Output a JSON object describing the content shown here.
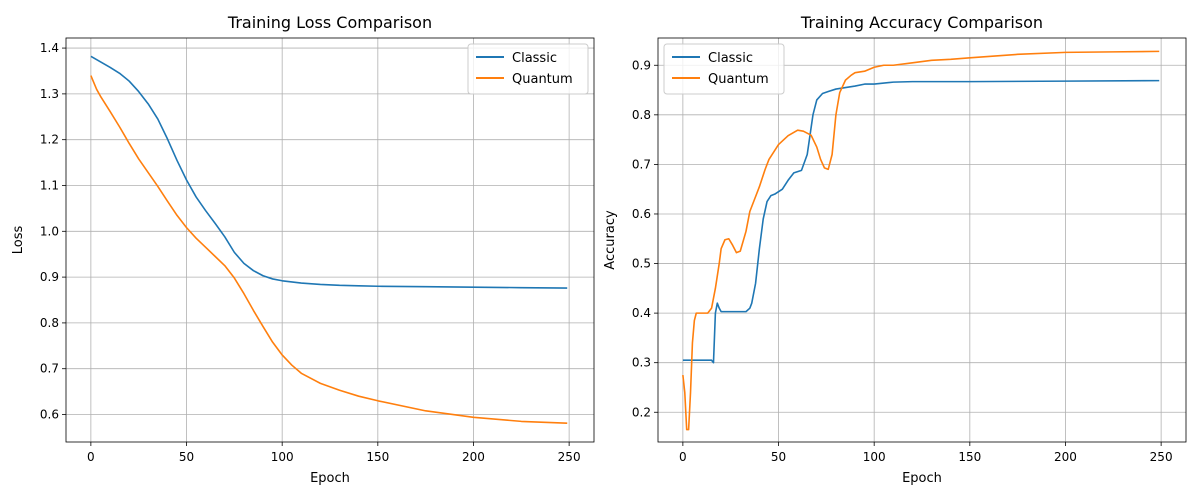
{
  "figure": {
    "background": "#ffffff"
  },
  "chart_data": [
    {
      "type": "line",
      "title": "Training Loss Comparison",
      "xlabel": "Epoch",
      "ylabel": "Loss",
      "xlim": [
        -13,
        263
      ],
      "ylim": [
        0.54,
        1.422
      ],
      "xticks": [
        0,
        50,
        100,
        150,
        200,
        250
      ],
      "yticks": [
        0.6,
        0.7,
        0.8,
        0.9,
        1.0,
        1.1,
        1.2,
        1.3,
        1.4
      ],
      "grid": true,
      "legend_position": "top-right",
      "series": [
        {
          "name": "Classic",
          "color": "#1f77b4",
          "x": [
            0,
            5,
            10,
            15,
            20,
            25,
            30,
            35,
            40,
            45,
            50,
            55,
            60,
            65,
            70,
            75,
            80,
            85,
            90,
            95,
            100,
            110,
            120,
            130,
            140,
            150,
            175,
            200,
            225,
            249
          ],
          "y": [
            1.382,
            1.37,
            1.358,
            1.345,
            1.328,
            1.305,
            1.278,
            1.245,
            1.202,
            1.155,
            1.112,
            1.075,
            1.045,
            1.017,
            0.988,
            0.954,
            0.93,
            0.914,
            0.903,
            0.896,
            0.892,
            0.887,
            0.884,
            0.882,
            0.881,
            0.88,
            0.879,
            0.878,
            0.877,
            0.876
          ]
        },
        {
          "name": "Quantum",
          "color": "#ff7f0e",
          "x": [
            0,
            3,
            5,
            10,
            15,
            20,
            25,
            30,
            35,
            40,
            45,
            50,
            55,
            60,
            65,
            70,
            75,
            80,
            85,
            90,
            95,
            100,
            105,
            110,
            120,
            130,
            140,
            150,
            175,
            200,
            225,
            249
          ],
          "y": [
            1.34,
            1.31,
            1.295,
            1.262,
            1.228,
            1.192,
            1.158,
            1.128,
            1.098,
            1.066,
            1.035,
            1.008,
            0.985,
            0.965,
            0.945,
            0.925,
            0.898,
            0.864,
            0.827,
            0.792,
            0.758,
            0.73,
            0.708,
            0.69,
            0.668,
            0.653,
            0.64,
            0.63,
            0.608,
            0.594,
            0.585,
            0.581
          ]
        }
      ]
    },
    {
      "type": "line",
      "title": "Training Accuracy Comparison",
      "xlabel": "Epoch",
      "ylabel": "Accuracy",
      "xlim": [
        -13,
        263
      ],
      "ylim": [
        0.14,
        0.955
      ],
      "xticks": [
        0,
        50,
        100,
        150,
        200,
        250
      ],
      "yticks": [
        0.2,
        0.3,
        0.4,
        0.5,
        0.6,
        0.7,
        0.8,
        0.9
      ],
      "grid": true,
      "legend_position": "top-left",
      "series": [
        {
          "name": "Classic",
          "color": "#1f77b4",
          "x": [
            0,
            15,
            16,
            17,
            18,
            19,
            20,
            25,
            30,
            33,
            35,
            36,
            38,
            40,
            42,
            44,
            46,
            48,
            52,
            55,
            58,
            62,
            65,
            68,
            70,
            73,
            76,
            80,
            85,
            90,
            95,
            100,
            110,
            120,
            150,
            200,
            249
          ],
          "y": [
            0.305,
            0.305,
            0.3,
            0.4,
            0.42,
            0.41,
            0.403,
            0.403,
            0.403,
            0.403,
            0.41,
            0.42,
            0.46,
            0.53,
            0.59,
            0.625,
            0.637,
            0.64,
            0.65,
            0.668,
            0.683,
            0.688,
            0.72,
            0.8,
            0.83,
            0.843,
            0.847,
            0.852,
            0.855,
            0.858,
            0.862,
            0.862,
            0.866,
            0.867,
            0.867,
            0.868,
            0.869
          ]
        },
        {
          "name": "Quantum",
          "color": "#ff7f0e",
          "x": [
            0,
            1,
            2,
            3,
            4,
            5,
            6,
            7,
            8,
            10,
            13,
            15,
            17,
            19,
            20,
            22,
            24,
            26,
            28,
            30,
            33,
            35,
            38,
            40,
            43,
            45,
            50,
            55,
            60,
            63,
            67,
            70,
            72,
            74,
            76,
            78,
            80,
            82,
            85,
            88,
            90,
            95,
            100,
            105,
            110,
            120,
            130,
            140,
            150,
            175,
            200,
            225,
            249
          ],
          "y": [
            0.275,
            0.24,
            0.165,
            0.165,
            0.24,
            0.34,
            0.385,
            0.4,
            0.4,
            0.4,
            0.4,
            0.41,
            0.45,
            0.5,
            0.53,
            0.548,
            0.55,
            0.537,
            0.522,
            0.525,
            0.565,
            0.605,
            0.635,
            0.655,
            0.69,
            0.71,
            0.74,
            0.758,
            0.769,
            0.767,
            0.759,
            0.735,
            0.71,
            0.693,
            0.69,
            0.72,
            0.8,
            0.845,
            0.87,
            0.88,
            0.885,
            0.888,
            0.896,
            0.9,
            0.9,
            0.905,
            0.91,
            0.912,
            0.915,
            0.922,
            0.926,
            0.927,
            0.928
          ]
        }
      ]
    }
  ]
}
